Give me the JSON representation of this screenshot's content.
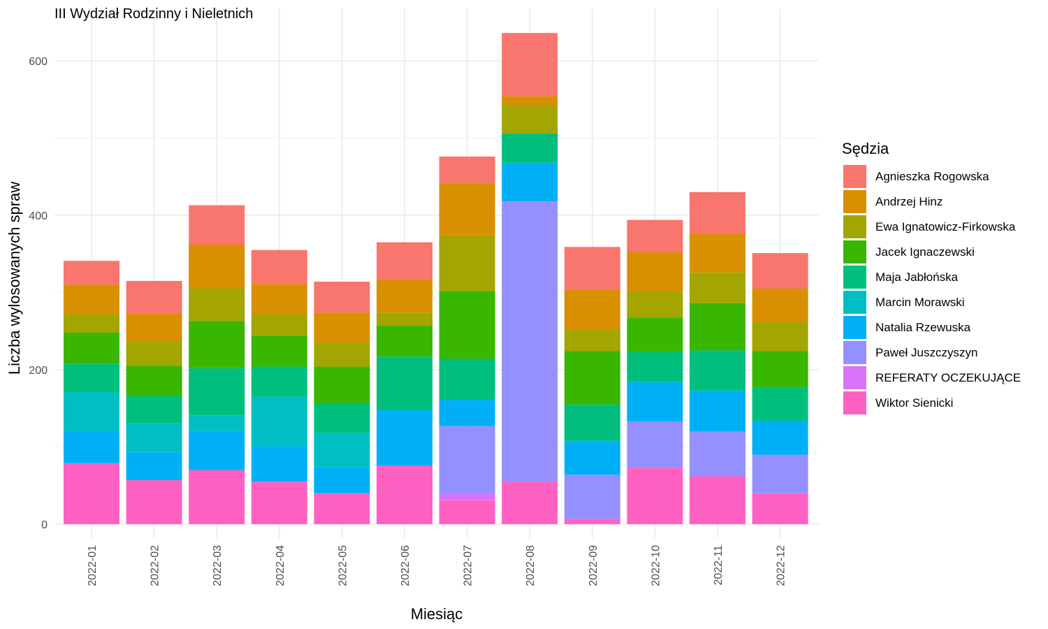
{
  "chart_data": {
    "type": "bar",
    "stacked": true,
    "title": "III Wydział Rodzinny i Nieletnich",
    "xlabel": "Miesiąc",
    "ylabel": "Liczba wylosowanych spraw",
    "ylim": [
      0,
      635
    ],
    "yticks": [
      0,
      200,
      400,
      600
    ],
    "grid": true,
    "legend_title": "Sędzia",
    "legend_position": "right",
    "categories": [
      "2022-01",
      "2022-02",
      "2022-03",
      "2022-04",
      "2022-05",
      "2022-06",
      "2022-07",
      "2022-08",
      "2022-09",
      "2022-10",
      "2022-11",
      "2022-12"
    ],
    "series": [
      {
        "name": "Wiktor Sienicki",
        "color": "#FF61C3",
        "values": [
          79,
          57,
          70,
          55,
          40,
          76,
          31,
          55,
          7,
          73,
          62,
          40
        ]
      },
      {
        "name": "REFERATY OCZEKUJĄCE",
        "color": "#DB72FB",
        "values": [
          0,
          0,
          0,
          0,
          0,
          0,
          8,
          0,
          0,
          0,
          0,
          0
        ]
      },
      {
        "name": "Paweł Juszczyszyn",
        "color": "#9590FF",
        "values": [
          0,
          0,
          0,
          0,
          0,
          0,
          88,
          363,
          57,
          60,
          58,
          50
        ]
      },
      {
        "name": "Natalia Rzewuska",
        "color": "#00B0F6",
        "values": [
          41,
          36,
          51,
          46,
          34,
          72,
          34,
          50,
          44,
          51,
          53,
          44
        ]
      },
      {
        "name": "Marcin Morawski",
        "color": "#00BFC4",
        "values": [
          51,
          38,
          20,
          64,
          44,
          0,
          0,
          0,
          0,
          0,
          0,
          0
        ]
      },
      {
        "name": "Maja Jabłońska",
        "color": "#00BF7D",
        "values": [
          37,
          35,
          61,
          39,
          39,
          69,
          53,
          38,
          47,
          39,
          52,
          43
        ]
      },
      {
        "name": "Jacek Ignaczewski",
        "color": "#39B600",
        "values": [
          40,
          39,
          61,
          40,
          47,
          40,
          88,
          0,
          69,
          44,
          61,
          47
        ]
      },
      {
        "name": "Ewa Ignatowicz-Firkowska",
        "color": "#A3A500",
        "values": [
          24,
          32,
          42,
          28,
          31,
          17,
          72,
          37,
          28,
          34,
          40,
          38
        ]
      },
      {
        "name": "Andrzej Hinz",
        "color": "#D89000",
        "values": [
          38,
          36,
          57,
          39,
          39,
          43,
          68,
          11,
          52,
          51,
          50,
          43
        ]
      },
      {
        "name": "Agnieszka Rogowska",
        "color": "#F8766D",
        "values": [
          31,
          42,
          51,
          44,
          40,
          48,
          34,
          82,
          55,
          42,
          54,
          46
        ]
      }
    ],
    "legend_order": [
      "Agnieszka Rogowska",
      "Andrzej Hinz",
      "Ewa Ignatowicz-Firkowska",
      "Jacek Ignaczewski",
      "Maja Jabłońska",
      "Marcin Morawski",
      "Natalia Rzewuska",
      "Paweł Juszczyszyn",
      "REFERATY OCZEKUJĄCE",
      "Wiktor Sienicki"
    ]
  }
}
